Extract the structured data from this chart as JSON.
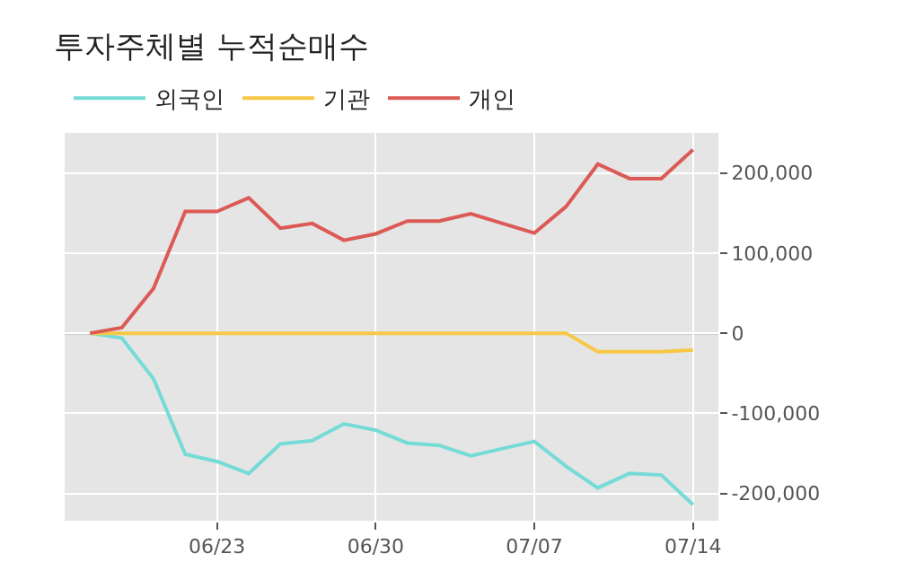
{
  "chart_data": {
    "type": "line",
    "title": "투자주체별 누적순매수",
    "categories": [
      null,
      null,
      null,
      null,
      "06/23",
      null,
      null,
      null,
      null,
      "06/30",
      null,
      null,
      null,
      null,
      "07/07",
      null,
      null,
      null,
      null,
      "07/14"
    ],
    "series": [
      {
        "name": "외국인",
        "color": "#74dbd6",
        "values": [
          0,
          -6000,
          -57000,
          -151000,
          -160000,
          -175000,
          -138000,
          -134000,
          -113000,
          -121000,
          -137000,
          -140000,
          -153000,
          -144000,
          -135000,
          -166000,
          -193000,
          -175000,
          -177000,
          -214000
        ]
      },
      {
        "name": "기관",
        "color": "#f7c844",
        "values": [
          0,
          0,
          0,
          0,
          0,
          0,
          0,
          0,
          0,
          0,
          0,
          0,
          0,
          0,
          0,
          0,
          -23000,
          -23000,
          -23000,
          -21000
        ]
      },
      {
        "name": "개인",
        "color": "#dc5a55",
        "values": [
          0,
          7000,
          56000,
          152000,
          152000,
          169000,
          131000,
          137000,
          116000,
          124000,
          140000,
          140000,
          149000,
          137000,
          125000,
          158000,
          211000,
          193000,
          193000,
          229000
        ]
      }
    ],
    "ylim": [
      -234000,
      250000
    ],
    "yticks": [
      {
        "value": -200000,
        "label": "-200,000"
      },
      {
        "value": -100000,
        "label": "-100,000"
      },
      0,
      {
        "value": 100000,
        "label": "100,000"
      },
      {
        "value": 200000,
        "label": "200,000"
      }
    ],
    "ref_lines": [
      {
        "axis": "y",
        "value": 0,
        "color": "#777777"
      }
    ],
    "grid": true,
    "legend": "top left",
    "line_style": "solid"
  }
}
